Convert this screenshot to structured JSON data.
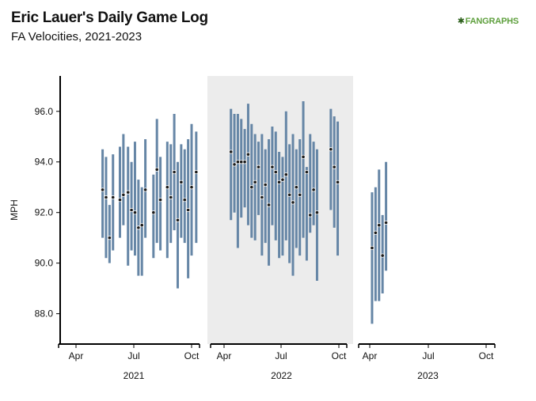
{
  "header": {
    "title": "Eric Lauer's Daily Game Log",
    "subtitle": "FA Velocities, 2021-2023",
    "logo_mark": "✱",
    "logo_text": "FANGRAPHS"
  },
  "colors": {
    "range_bar": "#6686a6",
    "point_fill": "#1a1a1a",
    "point_stroke": "#ffffff",
    "shaded_panel": "#ececec",
    "axis": "#000000"
  },
  "chart_data": {
    "type": "range",
    "ylabel": "MPH",
    "ylim": [
      86.8,
      97.4
    ],
    "yticks": [
      88.0,
      90.0,
      92.0,
      94.0,
      96.0
    ],
    "ytick_labels": [
      "88.0",
      "90.0",
      "92.0",
      "94.0",
      "96.0"
    ],
    "month_ticks": [
      "Apr",
      "Jul",
      "Oct"
    ],
    "panels": [
      {
        "year": "2021",
        "shaded": false,
        "games": [
          {
            "x": 0.23,
            "low": 91.0,
            "high": 94.5,
            "avg": 92.9
          },
          {
            "x": 0.26,
            "low": 90.2,
            "high": 94.2,
            "avg": 92.6
          },
          {
            "x": 0.29,
            "low": 90.0,
            "high": 92.3,
            "avg": 91.0
          },
          {
            "x": 0.32,
            "low": 90.5,
            "high": 94.3,
            "avg": 92.6
          },
          {
            "x": 0.38,
            "low": 91.0,
            "high": 94.6,
            "avg": 92.5
          },
          {
            "x": 0.41,
            "low": 91.5,
            "high": 95.1,
            "avg": 92.7
          },
          {
            "x": 0.45,
            "low": 89.9,
            "high": 94.6,
            "avg": 92.8
          },
          {
            "x": 0.48,
            "low": 90.5,
            "high": 94.0,
            "avg": 92.1
          },
          {
            "x": 0.51,
            "low": 90.3,
            "high": 94.8,
            "avg": 92.0
          },
          {
            "x": 0.54,
            "low": 89.5,
            "high": 93.3,
            "avg": 91.4
          },
          {
            "x": 0.57,
            "low": 89.5,
            "high": 93.0,
            "avg": 91.5
          },
          {
            "x": 0.6,
            "low": 91.0,
            "high": 94.9,
            "avg": 92.9
          },
          {
            "x": 0.67,
            "low": 90.2,
            "high": 93.5,
            "avg": 92.0
          },
          {
            "x": 0.7,
            "low": 90.8,
            "high": 95.7,
            "avg": 93.7
          },
          {
            "x": 0.73,
            "low": 90.5,
            "high": 94.2,
            "avg": 92.5
          },
          {
            "x": 0.79,
            "low": 90.2,
            "high": 94.8,
            "avg": 93.0
          },
          {
            "x": 0.82,
            "low": 90.8,
            "high": 94.7,
            "avg": 92.6
          },
          {
            "x": 0.85,
            "low": 91.3,
            "high": 95.9,
            "avg": 93.6
          },
          {
            "x": 0.88,
            "low": 89.0,
            "high": 94.0,
            "avg": 91.7
          },
          {
            "x": 0.91,
            "low": 91.0,
            "high": 94.7,
            "avg": 93.2
          },
          {
            "x": 0.94,
            "low": 90.8,
            "high": 94.5,
            "avg": 92.5
          },
          {
            "x": 0.97,
            "low": 89.4,
            "high": 94.9,
            "avg": 92.1
          },
          {
            "x": 1.0,
            "low": 90.3,
            "high": 95.5,
            "avg": 93.0
          },
          {
            "x": 1.04,
            "low": 90.8,
            "high": 95.2,
            "avg": 93.6
          }
        ]
      },
      {
        "year": "2022",
        "shaded": true,
        "games": [
          {
            "x": 0.06,
            "low": 91.7,
            "high": 96.1,
            "avg": 94.4
          },
          {
            "x": 0.09,
            "low": 92.0,
            "high": 95.9,
            "avg": 93.9
          },
          {
            "x": 0.12,
            "low": 90.6,
            "high": 95.9,
            "avg": 94.0
          },
          {
            "x": 0.15,
            "low": 91.8,
            "high": 95.7,
            "avg": 94.0
          },
          {
            "x": 0.18,
            "low": 92.2,
            "high": 95.3,
            "avg": 94.0
          },
          {
            "x": 0.21,
            "low": 91.5,
            "high": 96.3,
            "avg": 94.3
          },
          {
            "x": 0.24,
            "low": 91.0,
            "high": 95.5,
            "avg": 93.0
          },
          {
            "x": 0.27,
            "low": 90.9,
            "high": 95.1,
            "avg": 93.2
          },
          {
            "x": 0.3,
            "low": 91.9,
            "high": 94.8,
            "avg": 93.8
          },
          {
            "x": 0.33,
            "low": 90.3,
            "high": 95.1,
            "avg": 92.6
          },
          {
            "x": 0.36,
            "low": 90.8,
            "high": 94.5,
            "avg": 93.1
          },
          {
            "x": 0.39,
            "low": 89.9,
            "high": 94.9,
            "avg": 92.3
          },
          {
            "x": 0.42,
            "low": 91.5,
            "high": 95.4,
            "avg": 93.8
          },
          {
            "x": 0.45,
            "low": 90.9,
            "high": 95.2,
            "avg": 93.6
          },
          {
            "x": 0.48,
            "low": 90.2,
            "high": 94.4,
            "avg": 93.2
          },
          {
            "x": 0.51,
            "low": 90.3,
            "high": 94.2,
            "avg": 93.3
          },
          {
            "x": 0.54,
            "low": 90.9,
            "high": 96.0,
            "avg": 93.5
          },
          {
            "x": 0.57,
            "low": 90.0,
            "high": 94.7,
            "avg": 92.7
          },
          {
            "x": 0.6,
            "low": 89.5,
            "high": 95.1,
            "avg": 92.4
          },
          {
            "x": 0.63,
            "low": 90.6,
            "high": 94.5,
            "avg": 93.0
          },
          {
            "x": 0.66,
            "low": 90.3,
            "high": 94.9,
            "avg": 92.7
          },
          {
            "x": 0.69,
            "low": 91.0,
            "high": 96.4,
            "avg": 94.2
          },
          {
            "x": 0.72,
            "low": 90.1,
            "high": 93.8,
            "avg": 93.6
          },
          {
            "x": 0.75,
            "low": 91.2,
            "high": 95.1,
            "avg": 91.9
          },
          {
            "x": 0.78,
            "low": 91.5,
            "high": 94.8,
            "avg": 92.9
          },
          {
            "x": 0.81,
            "low": 89.3,
            "high": 94.5,
            "avg": 92.0
          },
          {
            "x": 0.93,
            "low": 92.1,
            "high": 96.1,
            "avg": 94.5
          },
          {
            "x": 0.96,
            "low": 91.4,
            "high": 95.8,
            "avg": 93.8
          },
          {
            "x": 0.99,
            "low": 90.3,
            "high": 95.6,
            "avg": 93.2
          }
        ]
      },
      {
        "year": "2023",
        "shaded": false,
        "games": [
          {
            "x": 0.02,
            "low": 87.6,
            "high": 92.8,
            "avg": 90.6
          },
          {
            "x": 0.05,
            "low": 88.5,
            "high": 93.0,
            "avg": 91.2
          },
          {
            "x": 0.08,
            "low": 88.5,
            "high": 93.7,
            "avg": 91.5
          },
          {
            "x": 0.11,
            "low": 88.8,
            "high": 91.9,
            "avg": 90.3
          },
          {
            "x": 0.14,
            "low": 89.7,
            "high": 94.0,
            "avg": 91.6
          }
        ]
      }
    ]
  }
}
